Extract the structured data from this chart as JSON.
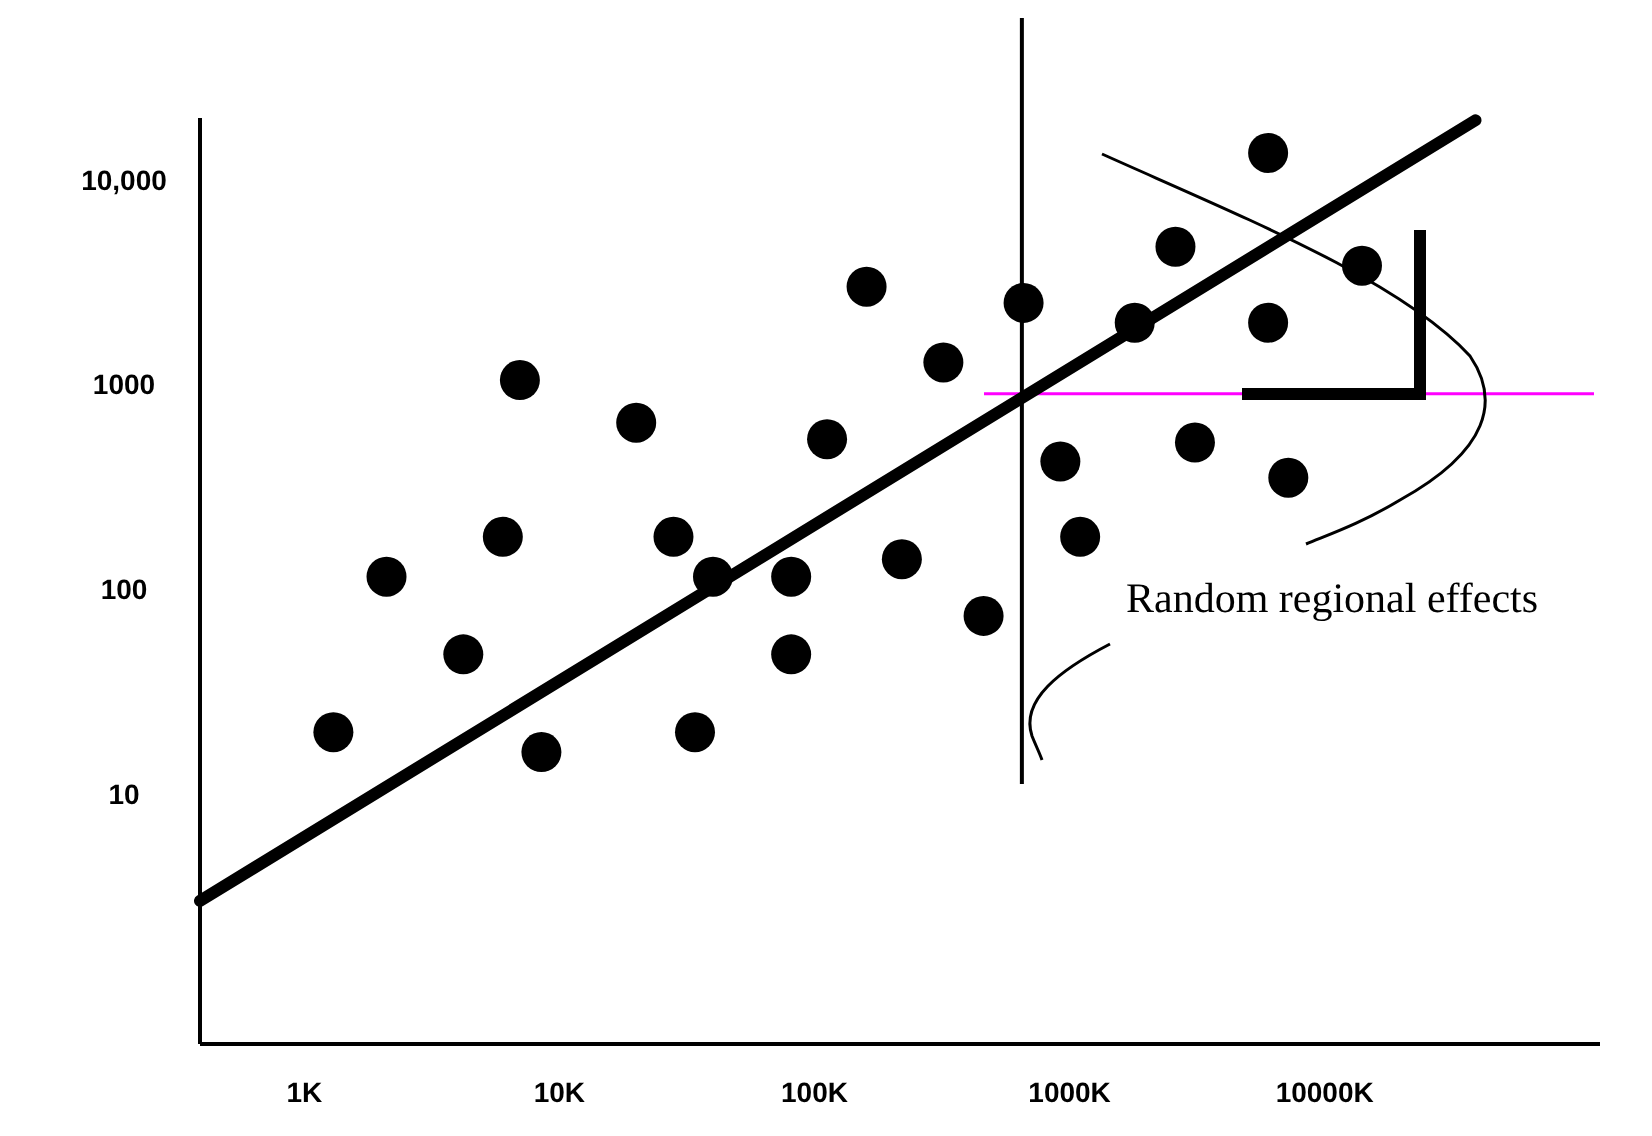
{
  "chart_data": {
    "type": "scatter",
    "log": "xy",
    "grid": false,
    "marker": "circle",
    "xlim": [
      390,
      120000000
    ],
    "ylim": [
      0.6,
      20000
    ],
    "xticks": [
      {
        "value": 1000,
        "label": "1K"
      },
      {
        "value": 10000,
        "label": "10K"
      },
      {
        "value": 100000,
        "label": "100K"
      },
      {
        "value": 1000000,
        "label": "1000K"
      },
      {
        "value": 10000000,
        "label": "10000K"
      }
    ],
    "yticks": [
      10,
      100,
      1000,
      {
        "value": 10000,
        "label": "10,000"
      }
    ],
    "series": [
      {
        "color": "#000000",
        "x": [
          1300,
          2100,
          4200,
          6000,
          7000,
          8500,
          20000,
          28000,
          34000,
          40000,
          81000,
          81000,
          112000,
          160000,
          220000,
          320000,
          460000,
          660000,
          920000,
          1100000,
          1800000,
          2600000,
          3100000,
          6000000,
          6000000,
          7200000,
          14000000
        ],
        "values": [
          20,
          115,
          48,
          180,
          1050,
          16,
          650,
          180,
          20,
          115,
          115,
          48,
          540,
          3000,
          140,
          1280,
          74,
          2500,
          420,
          180,
          2000,
          4700,
          520,
          13500,
          2000,
          350,
          3800
        ]
      },
      {
        "type": "line",
        "color": "#000000",
        "line_style": "solid",
        "marker": "none",
        "x": [
          390,
          39000000
        ],
        "values": [
          3,
          19500
        ]
      }
    ],
    "ref_lines": [
      {
        "axis": "x",
        "value": 650000,
        "color": "#000000"
      },
      {
        "axis": "y",
        "value": 900,
        "color": "#ff00ff"
      }
    ],
    "annotations": [
      "Random regional effects"
    ]
  }
}
